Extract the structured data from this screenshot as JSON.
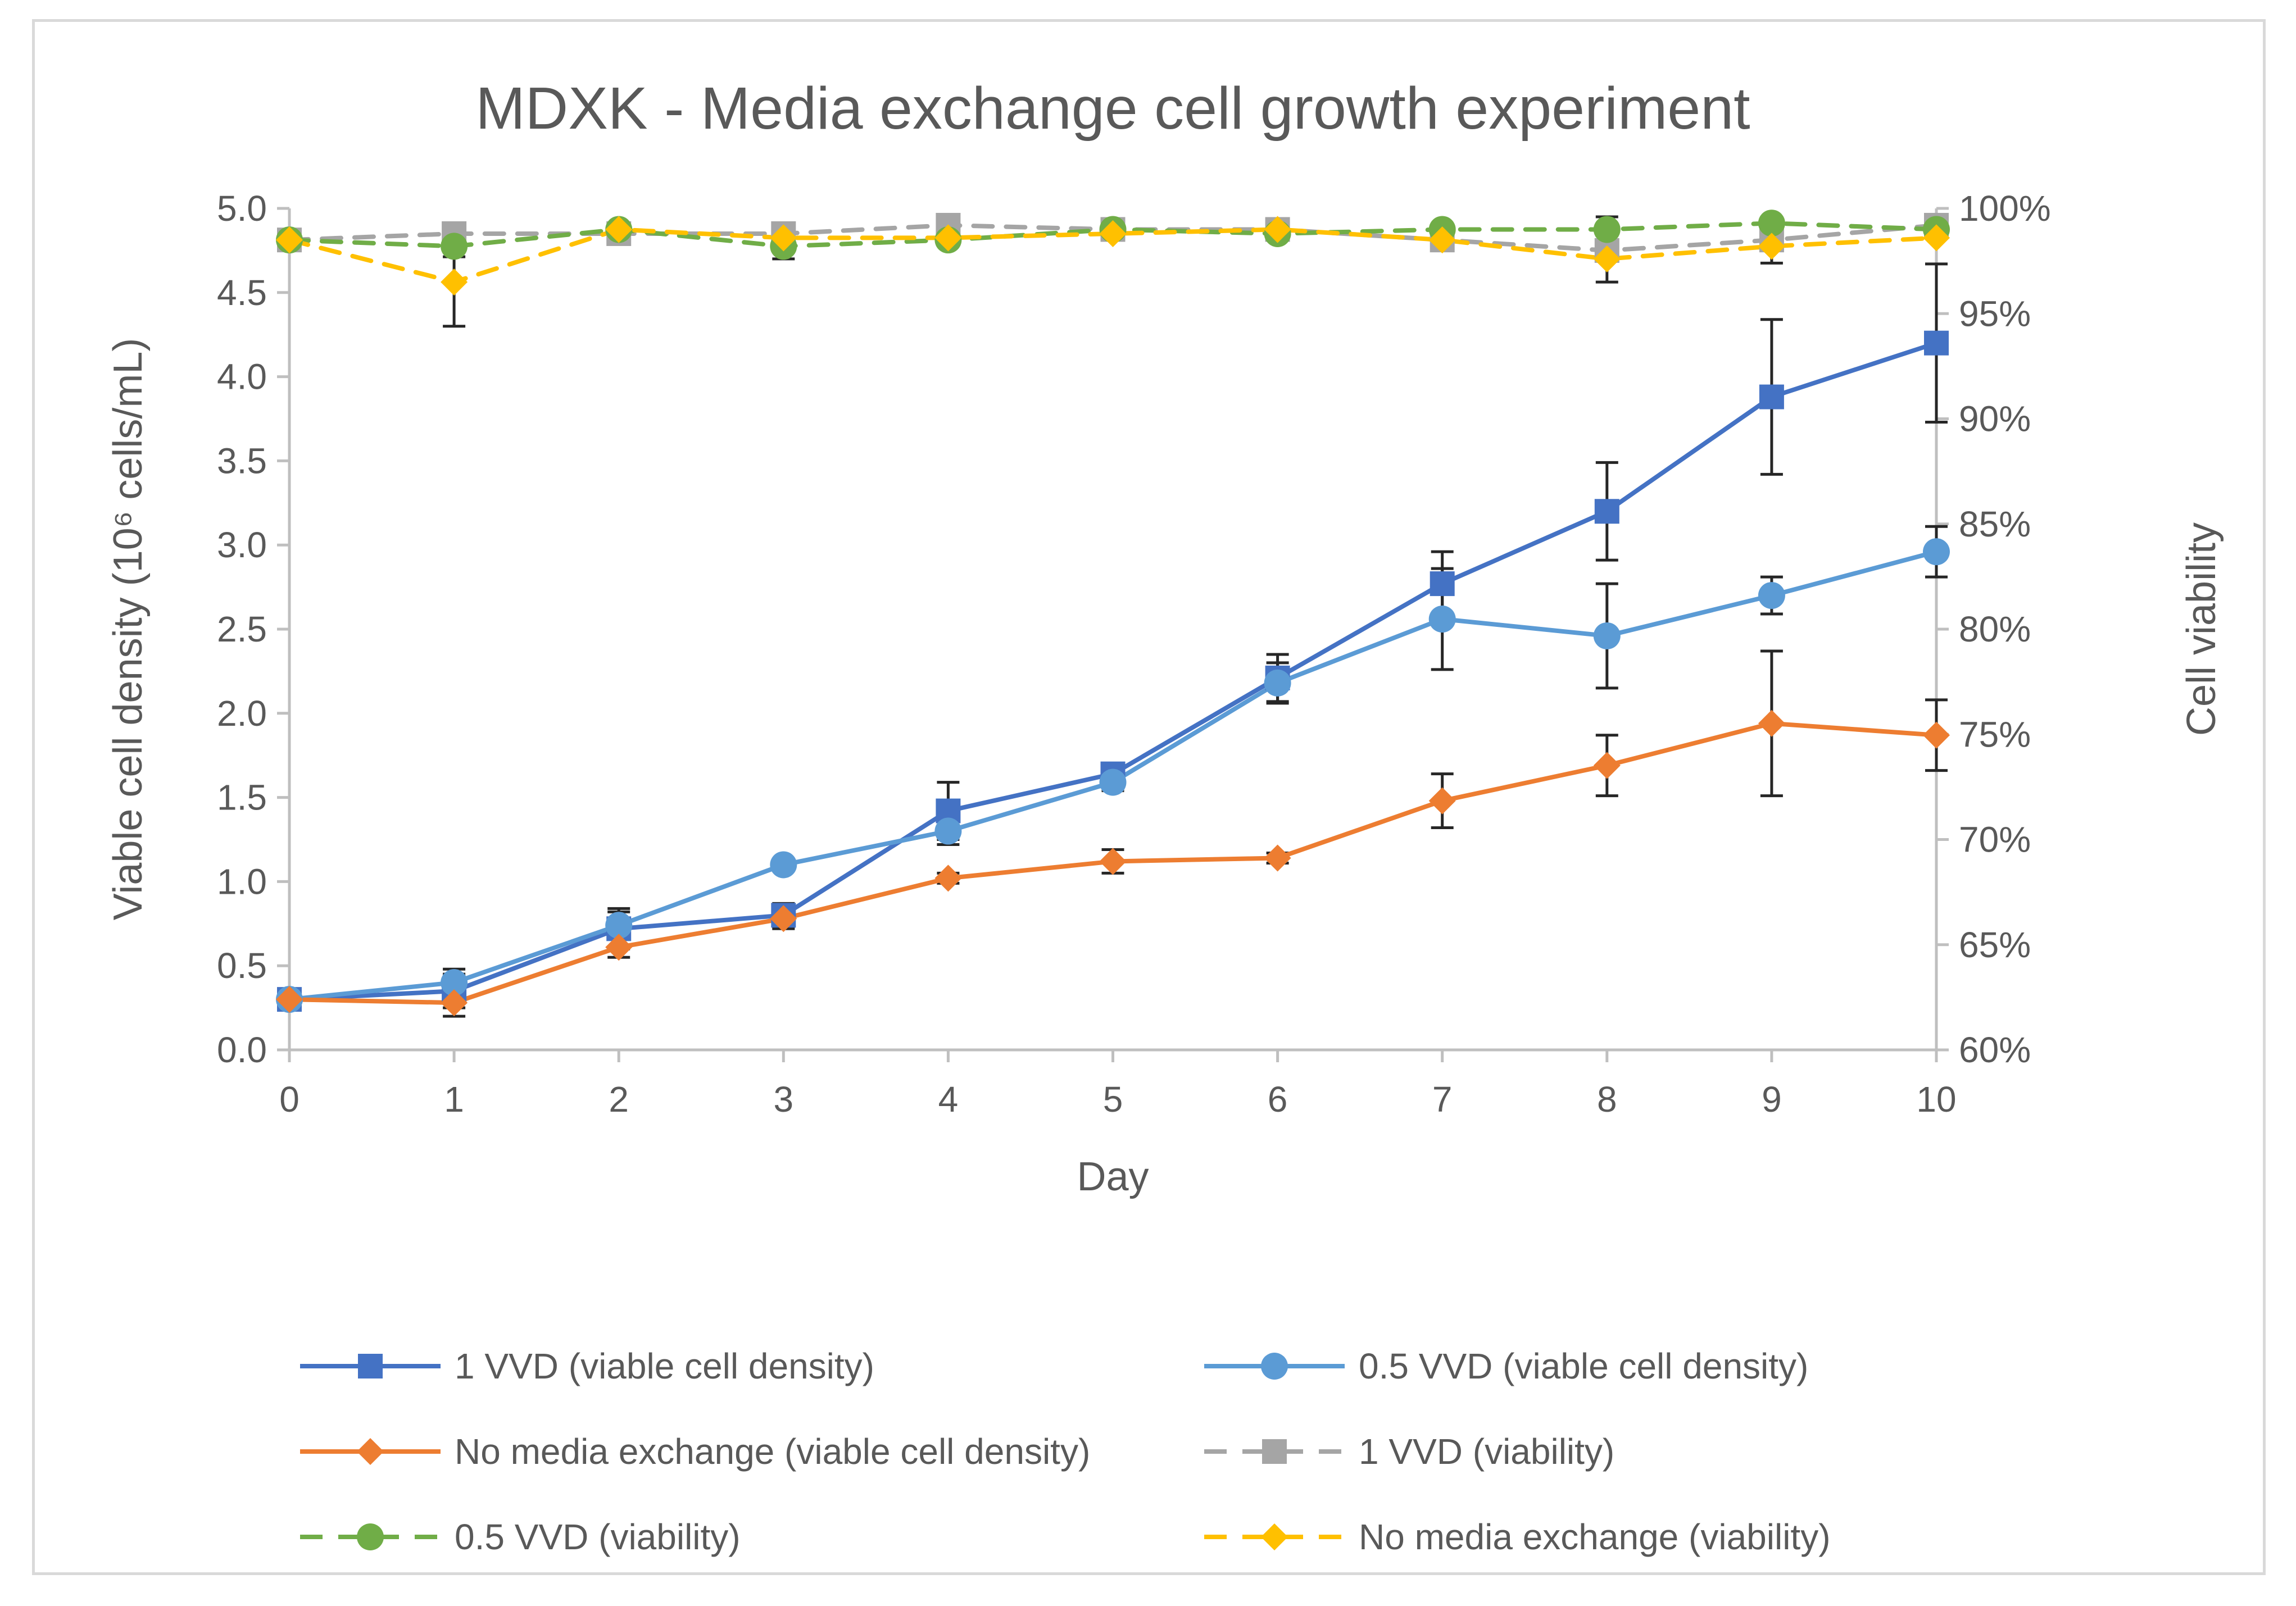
{
  "chart_data": {
    "type": "line",
    "title": "MDXK - Media exchange cell growth experiment",
    "xlabel": "Day",
    "ylabel_left": "Viable cell density (10⁶ cells/mL)",
    "ylabel_right": "Cell viability",
    "x": [
      0,
      1,
      2,
      3,
      4,
      5,
      6,
      7,
      8,
      9,
      10
    ],
    "xlim": [
      0,
      10
    ],
    "ylim_left": [
      0,
      5
    ],
    "ylim_right": [
      0.6,
      1.0
    ],
    "x_ticks": [
      "0",
      "1",
      "2",
      "3",
      "4",
      "5",
      "6",
      "7",
      "8",
      "9",
      "10"
    ],
    "y_left_ticks": [
      "0.0",
      "0.5",
      "1.0",
      "1.5",
      "2.0",
      "2.5",
      "3.0",
      "3.5",
      "4.0",
      "4.5",
      "5.0"
    ],
    "y_right_ticks": [
      "60%",
      "65%",
      "70%",
      "75%",
      "80%",
      "85%",
      "90%",
      "95%",
      "100%"
    ],
    "grid": false,
    "legend_position": "bottom",
    "series": [
      {
        "name": "1 VVD (viable cell density)",
        "axis": "left",
        "color": "#4472c4",
        "marker": "square",
        "dash": false,
        "values": [
          0.3,
          0.35,
          0.72,
          0.8,
          1.42,
          1.64,
          2.21,
          2.77,
          3.2,
          3.88,
          4.2
        ],
        "errors": [
          null,
          0.1,
          0.12,
          0.07,
          0.17,
          0.05,
          0.14,
          0.19,
          0.29,
          0.46,
          0.47
        ]
      },
      {
        "name": "0.5 VVD (viable cell density)",
        "axis": "left",
        "color": "#5b9bd5",
        "marker": "circle",
        "dash": false,
        "values": [
          0.3,
          0.4,
          0.74,
          1.1,
          1.3,
          1.59,
          2.18,
          2.56,
          2.46,
          2.7,
          2.96
        ],
        "errors": [
          null,
          0.08,
          0.08,
          null,
          0.08,
          0.05,
          0.12,
          0.3,
          0.31,
          0.11,
          0.15
        ]
      },
      {
        "name": "No media exchange (viable cell density)",
        "axis": "left",
        "color": "#ed7d31",
        "marker": "diamond",
        "dash": false,
        "values": [
          0.3,
          0.28,
          0.61,
          0.78,
          1.02,
          1.12,
          1.14,
          1.48,
          1.69,
          1.94,
          1.87
        ],
        "errors": [
          null,
          0.08,
          0.06,
          0.06,
          0.03,
          0.07,
          0.03,
          0.16,
          0.18,
          0.43,
          0.21
        ]
      },
      {
        "name": "1 VVD (viability)",
        "axis": "right",
        "color": "#a5a5a5",
        "marker": "square",
        "dash": true,
        "values": [
          0.985,
          0.988,
          0.988,
          0.988,
          0.992,
          0.99,
          0.99,
          0.985,
          0.98,
          0.985,
          0.992
        ],
        "errors": [
          null,
          null,
          null,
          null,
          null,
          null,
          null,
          null,
          null,
          null,
          null
        ]
      },
      {
        "name": "0.5 VVD (viability)",
        "axis": "right",
        "color": "#70ad47",
        "marker": "circle",
        "dash": true,
        "values": [
          0.985,
          0.982,
          0.99,
          0.982,
          0.985,
          0.99,
          0.988,
          0.99,
          0.99,
          0.993,
          0.99
        ],
        "errors": [
          null,
          0.005,
          null,
          0.006,
          null,
          null,
          null,
          null,
          0.006,
          null,
          null
        ]
      },
      {
        "name": "No media exchange (viability)",
        "axis": "right",
        "color": "#ffc000",
        "marker": "diamond",
        "dash": true,
        "values": [
          0.985,
          0.965,
          0.99,
          0.986,
          0.986,
          0.988,
          0.99,
          0.985,
          0.976,
          0.982,
          0.986
        ],
        "errors": [
          null,
          0.021,
          null,
          null,
          null,
          null,
          null,
          null,
          0.011,
          0.008,
          null
        ]
      }
    ]
  }
}
